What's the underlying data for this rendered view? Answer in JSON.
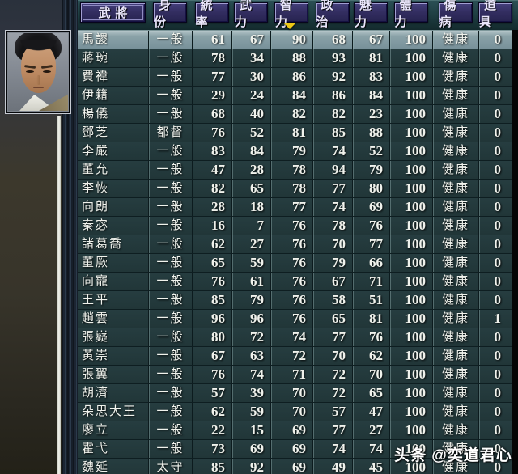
{
  "table": {
    "columns": [
      "武將",
      "身份",
      "統率",
      "武力",
      "智力",
      "政治",
      "魅力",
      "體力",
      "傷病",
      "道具"
    ],
    "sort_column": "智力",
    "sort_column_index": 4,
    "sort_icon": "sort-descending-triangle",
    "selected_row_index": 0,
    "rows": [
      [
        "馬謖",
        "一般",
        61,
        67,
        90,
        68,
        67,
        100,
        "健康",
        0
      ],
      [
        "蔣琬",
        "一般",
        78,
        34,
        88,
        93,
        81,
        100,
        "健康",
        0
      ],
      [
        "費禕",
        "一般",
        77,
        30,
        86,
        92,
        83,
        100,
        "健康",
        0
      ],
      [
        "伊籍",
        "一般",
        29,
        24,
        84,
        86,
        84,
        100,
        "健康",
        0
      ],
      [
        "楊儀",
        "一般",
        68,
        40,
        82,
        82,
        23,
        100,
        "健康",
        0
      ],
      [
        "鄧芝",
        "都督",
        76,
        52,
        81,
        85,
        88,
        100,
        "健康",
        0
      ],
      [
        "李嚴",
        "一般",
        83,
        84,
        79,
        74,
        52,
        100,
        "健康",
        0
      ],
      [
        "董允",
        "一般",
        47,
        28,
        78,
        94,
        79,
        100,
        "健康",
        0
      ],
      [
        "李恢",
        "一般",
        82,
        65,
        78,
        77,
        80,
        100,
        "健康",
        0
      ],
      [
        "向朗",
        "一般",
        28,
        18,
        77,
        74,
        69,
        100,
        "健康",
        0
      ],
      [
        "秦宓",
        "一般",
        16,
        7,
        76,
        78,
        76,
        100,
        "健康",
        0
      ],
      [
        "諸葛喬",
        "一般",
        62,
        27,
        76,
        70,
        77,
        100,
        "健康",
        0
      ],
      [
        "董厥",
        "一般",
        65,
        59,
        76,
        79,
        66,
        100,
        "健康",
        0
      ],
      [
        "向寵",
        "一般",
        76,
        61,
        76,
        67,
        71,
        100,
        "健康",
        0
      ],
      [
        "王平",
        "一般",
        85,
        79,
        76,
        58,
        51,
        100,
        "健康",
        0
      ],
      [
        "趙雲",
        "一般",
        96,
        96,
        76,
        65,
        81,
        100,
        "健康",
        1
      ],
      [
        "張嶷",
        "一般",
        80,
        72,
        74,
        77,
        76,
        100,
        "健康",
        0
      ],
      [
        "黃崇",
        "一般",
        67,
        63,
        72,
        70,
        62,
        100,
        "健康",
        0
      ],
      [
        "張翼",
        "一般",
        76,
        74,
        71,
        72,
        70,
        100,
        "健康",
        0
      ],
      [
        "胡濟",
        "一般",
        57,
        39,
        70,
        72,
        65,
        100,
        "健康",
        0
      ],
      [
        "朵思大王",
        "一般",
        62,
        59,
        70,
        57,
        47,
        100,
        "健康",
        0
      ],
      [
        "廖立",
        "一般",
        22,
        15,
        69,
        77,
        27,
        100,
        "健康",
        0
      ],
      [
        "霍弋",
        "一般",
        73,
        69,
        69,
        74,
        74,
        100,
        "健康",
        0
      ],
      [
        "魏延",
        "太守",
        85,
        92,
        69,
        49,
        45,
        100,
        "健康",
        0
      ]
    ]
  },
  "portrait": {
    "icon": "officer-portrait"
  },
  "watermark": {
    "text": "头条 @奕道君心"
  },
  "colors": {
    "header_button": "#332e61",
    "header_bg": "#1d3c40",
    "row_bg": "#223639",
    "row_highlight": "#87a0a7",
    "sort_arrow": "#ecc815",
    "text": "#f0f2ec"
  }
}
